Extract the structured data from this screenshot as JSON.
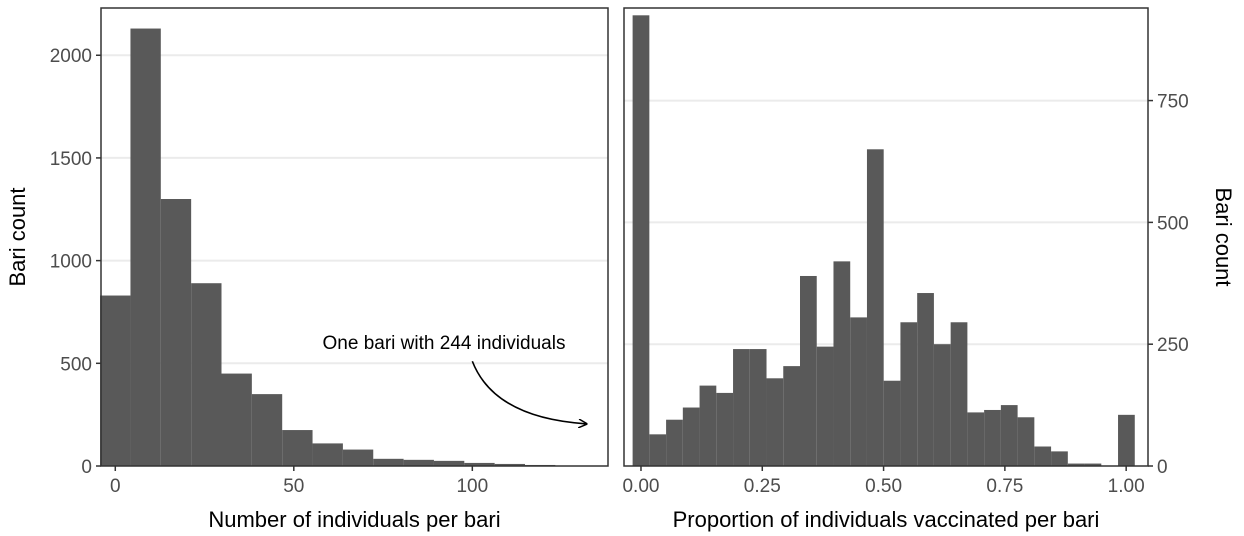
{
  "chart_data": [
    {
      "type": "bar",
      "subtype": "histogram",
      "xlabel": "Number of individuals per bari",
      "ylabel": "Bari count",
      "ylabel_side": "left",
      "xlim": [
        -4,
        138
      ],
      "ylim": [
        0,
        2230
      ],
      "xticks": [
        0,
        50,
        100
      ],
      "yticks": [
        0,
        500,
        1000,
        1500,
        2000
      ],
      "grid": true,
      "bin_width": 8.5,
      "bin_starts": [
        -4.25,
        4.25,
        12.75,
        21.25,
        29.75,
        38.25,
        46.75,
        55.25,
        63.75,
        72.25,
        80.75,
        89.25,
        97.75,
        106.25,
        114.75
      ],
      "values": [
        830,
        2130,
        1300,
        890,
        450,
        350,
        175,
        110,
        80,
        35,
        30,
        25,
        15,
        10,
        5
      ],
      "annotation": {
        "text": "One bari with 244 individuals",
        "arrow_from": [
          100,
          510
        ],
        "arrow_to": [
          132,
          205
        ]
      }
    },
    {
      "type": "bar",
      "subtype": "histogram",
      "xlabel": "Proportion of individuals vaccinated per bari",
      "ylabel": "Bari count",
      "ylabel_side": "right",
      "xlim": [
        -0.035,
        1.045
      ],
      "ylim": [
        0,
        940
      ],
      "xticks": [
        0.0,
        0.25,
        0.5,
        0.75,
        1.0
      ],
      "xtick_labels": [
        "0.00",
        "0.25",
        "0.50",
        "0.75",
        "1.00"
      ],
      "yticks": [
        0,
        250,
        500,
        750
      ],
      "grid": true,
      "bin_width": 0.0345,
      "bin_starts": [
        -0.01725,
        0.01725,
        0.05175,
        0.08625,
        0.12075,
        0.15525,
        0.18975,
        0.22425,
        0.25875,
        0.29325,
        0.32775,
        0.36225,
        0.39675,
        0.43125,
        0.46575,
        0.50025,
        0.53475,
        0.56925,
        0.60375,
        0.63825,
        0.67275,
        0.70725,
        0.74175,
        0.77625,
        0.81075,
        0.84525,
        0.87975,
        0.91425,
        0.94875,
        0.98325
      ],
      "values": [
        925,
        65,
        95,
        120,
        165,
        150,
        240,
        240,
        180,
        205,
        390,
        245,
        420,
        305,
        650,
        175,
        295,
        355,
        250,
        295,
        110,
        115,
        125,
        100,
        40,
        30,
        5,
        5,
        0,
        105
      ]
    }
  ]
}
